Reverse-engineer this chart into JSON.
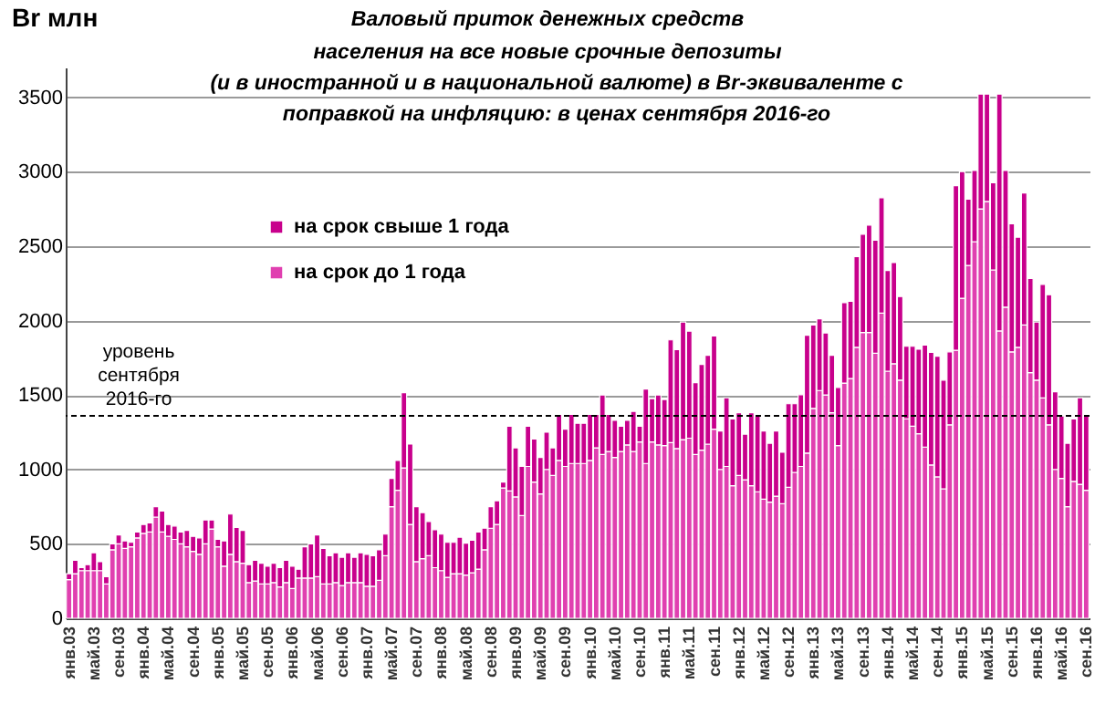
{
  "chart_data": {
    "type": "bar",
    "stacked": true,
    "title": "Валовый приток денежных средств населения на все новые срочные депозиты",
    "subtitle": "(и в иностранной и в национальной валюте) в Br-эквиваленте с поправкой на инфляцию: в ценах сентября 2016-го",
    "ylabel": "Br млн",
    "categories": [
      "янв.03",
      null,
      null,
      null,
      "май.03",
      null,
      null,
      null,
      "сен.03",
      null,
      null,
      null,
      "янв.04",
      null,
      null,
      null,
      "май.04",
      null,
      null,
      null,
      "сен.04",
      null,
      null,
      null,
      "янв.05",
      null,
      null,
      null,
      "май.05",
      null,
      null,
      null,
      "сен.05",
      null,
      null,
      null,
      "янв.06",
      null,
      null,
      null,
      "май.06",
      null,
      null,
      null,
      "сен.06",
      null,
      null,
      null,
      "янв.07",
      null,
      null,
      null,
      "май.07",
      null,
      null,
      null,
      "сен.07",
      null,
      null,
      null,
      "янв.08",
      null,
      null,
      null,
      "май.08",
      null,
      null,
      null,
      "сен.08",
      null,
      null,
      null,
      "янв.09",
      null,
      null,
      null,
      "май.09",
      null,
      null,
      null,
      "сен.09",
      null,
      null,
      null,
      "янв.10",
      null,
      null,
      null,
      "май.10",
      null,
      null,
      null,
      "сен.10",
      null,
      null,
      null,
      "янв.11",
      null,
      null,
      null,
      "май.11",
      null,
      null,
      null,
      "сен.11",
      null,
      null,
      null,
      "янв.12",
      null,
      null,
      null,
      "май.12",
      null,
      null,
      null,
      "сен.12",
      null,
      null,
      null,
      "янв.13",
      null,
      null,
      null,
      "май.13",
      null,
      null,
      null,
      "сен.13",
      null,
      null,
      null,
      "янв.14",
      null,
      null,
      null,
      "май.14",
      null,
      null,
      null,
      "сен.14",
      null,
      null,
      null,
      "янв.15",
      null,
      null,
      null,
      "май.15",
      null,
      null,
      null,
      "сен.15",
      null,
      null,
      null,
      "янв.16",
      null,
      null,
      null,
      "май.16",
      null,
      null,
      null,
      "сен.16"
    ],
    "series": [
      {
        "name": "на срок до 1 года",
        "color": "#e040b0",
        "values": [
          260,
          300,
          320,
          320,
          320,
          320,
          230,
          460,
          500,
          470,
          480,
          540,
          570,
          580,
          680,
          580,
          550,
          530,
          500,
          480,
          450,
          430,
          500,
          600,
          480,
          350,
          430,
          380,
          370,
          240,
          250,
          230,
          230,
          240,
          210,
          240,
          200,
          270,
          270,
          270,
          280,
          230,
          230,
          240,
          220,
          240,
          240,
          240,
          215,
          215,
          255,
          420,
          750,
          860,
          1010,
          630,
          380,
          400,
          420,
          340,
          320,
          275,
          300,
          300,
          290,
          305,
          330,
          460,
          605,
          630,
          875,
          855,
          815,
          690,
          1020,
          915,
          835,
          1000,
          960,
          1060,
          1020,
          1040,
          1040,
          1040,
          1060,
          1145,
          1100,
          1120,
          1080,
          1120,
          1165,
          1120,
          1185,
          1040,
          1185,
          1165,
          1160,
          1180,
          1140,
          1200,
          1210,
          1100,
          1130,
          1170,
          1270,
          1000,
          1020,
          890,
          960,
          930,
          890,
          850,
          800,
          780,
          820,
          770,
          880,
          980,
          1020,
          1110,
          1410,
          1530,
          1500,
          1380,
          1160,
          1580,
          1610,
          1820,
          1920,
          1920,
          1780,
          2050,
          1660,
          1710,
          1600,
          1340,
          1290,
          1240,
          1150,
          1030,
          950,
          870,
          1300,
          1800,
          2150,
          2370,
          2530,
          2750,
          2800,
          2340,
          1930,
          2090,
          1790,
          1820,
          1970,
          1650,
          1600,
          1480,
          1300,
          1000,
          940,
          750,
          920,
          900,
          860
        ]
      },
      {
        "name": "на срок свыше 1 года",
        "color": "#c8008c",
        "values": [
          40,
          90,
          20,
          40,
          120,
          60,
          50,
          40,
          60,
          50,
          30,
          40,
          60,
          60,
          70,
          140,
          80,
          90,
          80,
          110,
          100,
          110,
          160,
          60,
          50,
          170,
          270,
          230,
          220,
          120,
          140,
          140,
          120,
          130,
          130,
          150,
          150,
          60,
          210,
          230,
          280,
          240,
          190,
          200,
          190,
          200,
          170,
          200,
          215,
          205,
          205,
          145,
          190,
          200,
          505,
          540,
          370,
          310,
          230,
          255,
          245,
          235,
          210,
          245,
          215,
          220,
          250,
          145,
          145,
          160,
          40,
          435,
          330,
          330,
          270,
          290,
          245,
          250,
          185,
          310,
          250,
          330,
          270,
          270,
          310,
          225,
          400,
          250,
          250,
          170,
          165,
          270,
          105,
          500,
          290,
          335,
          310,
          690,
          665,
          790,
          719,
          483,
          575,
          596,
          627,
          258,
          461,
          449,
          420,
          307,
          490,
          509,
          458,
          396,
          438,
          345,
          561,
          461,
          482,
          791,
          560,
          481,
          417,
          386,
          391,
          540,
          519,
          610,
          660,
          721,
          760,
          775,
          676,
          679,
          561,
          487,
          537,
          567,
          686,
          757,
          810,
          730,
          490,
          1106,
          850,
          446,
          478,
          771,
          721,
          586,
          1591,
          918,
          860,
          740,
          887,
          633,
          390,
          763,
          873,
          522,
          419,
          426,
          419,
          581,
          499
        ]
      }
    ],
    "ylim": [
      0,
      3700
    ],
    "yticks": [
      0,
      500,
      1000,
      1500,
      2000,
      2500,
      3000,
      3500
    ],
    "grid": "y",
    "legend": "top left",
    "ref_lines": [
      {
        "axis": "y",
        "value": 1360,
        "label": "уровень сентября 2016-го",
        "line_style": "dashed",
        "color": "#000000"
      }
    ]
  }
}
